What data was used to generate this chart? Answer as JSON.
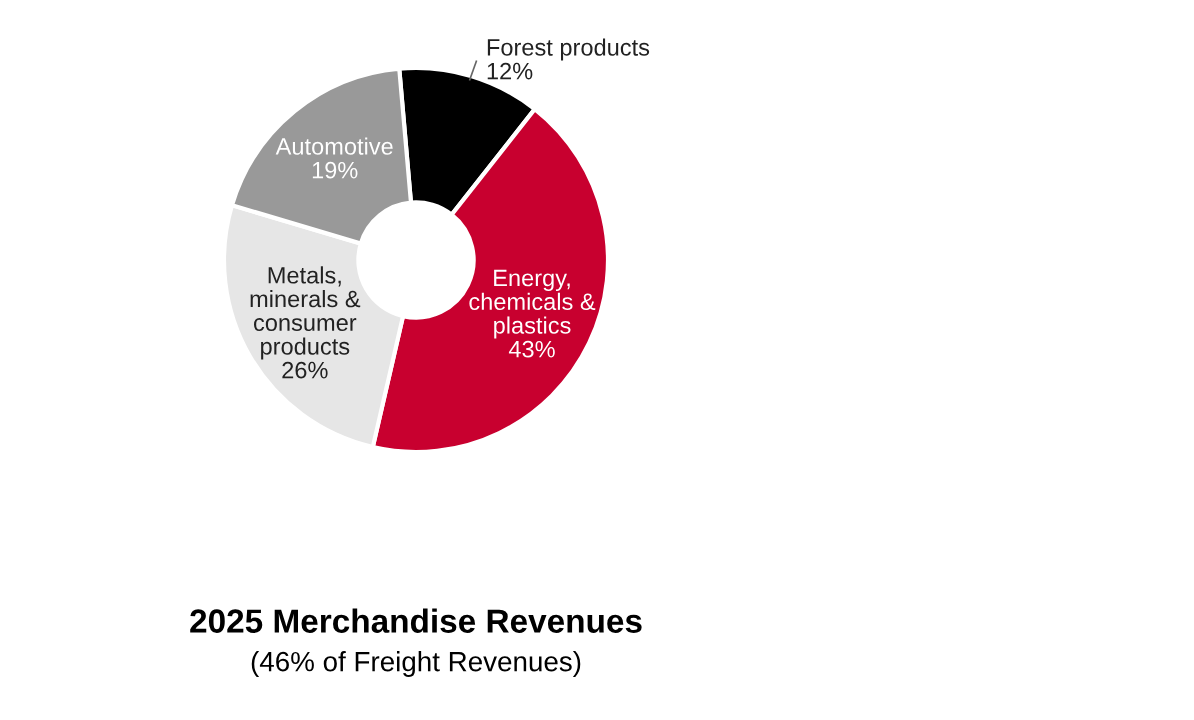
{
  "chart_data": {
    "type": "donut",
    "title": "2025 Merchandise Revenues",
    "subtitle": "(46% of Freight Revenues)",
    "categories": [
      "Forest products",
      "Energy,\nchemicals &\nplastics",
      "Metals,\nminerals &\nconsumer\nproducts",
      "Automotive"
    ],
    "values": [
      12,
      43,
      26,
      19
    ],
    "colors": [
      "#000000",
      "#c8002f",
      "#e6e6e6",
      "#999999"
    ],
    "value_labels": [
      "12%",
      "43%",
      "26%",
      "19%"
    ],
    "legend": false
  }
}
